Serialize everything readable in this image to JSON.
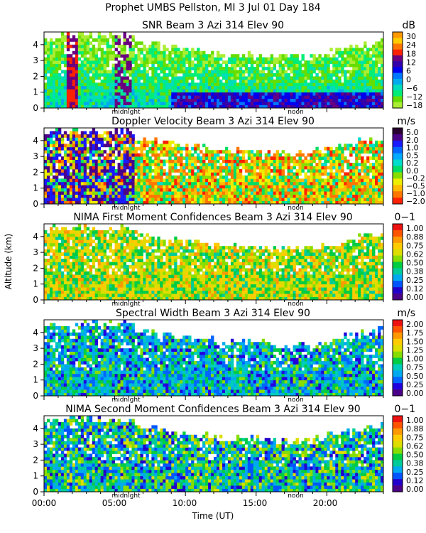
{
  "chart_data": {
    "type": "heatmap",
    "title": "Prophet  UMBS Pellston, MI   3 Jul 01 Day 184",
    "xlabel": "Time (UT)",
    "ylabel": "Altitude (km)",
    "x_tick_labels": [
      "00:00",
      "05:00",
      "10:00",
      "15:00",
      "20:00"
    ],
    "x_ticks_hours": [
      0,
      5,
      10,
      15,
      20
    ],
    "xlim_hours": [
      0,
      24
    ],
    "ylim_km": [
      0,
      4.8
    ],
    "y_ticks": [
      0,
      1,
      2,
      3,
      4
    ],
    "y_tick_labels": [
      "0",
      "1",
      "2",
      "3",
      "4"
    ],
    "markers": [
      {
        "label": "midnight",
        "hour": 5.8
      },
      {
        "label": "noon",
        "hour": 17.8
      }
    ],
    "panels": [
      {
        "title": "SNR Beam 3 Azi 314 Elev 90",
        "unit": "dB",
        "colorbar_labels": [
          "30",
          "24",
          "18",
          "12",
          "6",
          "0",
          "−6",
          "−12",
          "−18"
        ],
        "colors": [
          "#ff9900",
          "#ffcc00",
          "#ff7700",
          "#ff2200",
          "#6a0080",
          "#3300aa",
          "#0000ee",
          "#0077ff",
          "#00aaee",
          "#00ddbb",
          "#00ee77",
          "#66dd00",
          "#aaee33"
        ]
      },
      {
        "title": "Doppler Velocity Beam 3 Azi 314 Elev 90",
        "unit": "m/s",
        "colorbar_labels": [
          "5.0",
          "2.0",
          "1.0",
          "0.5",
          "0.2",
          "0.0",
          "−0.2",
          "−0.5",
          "−1.0",
          "−2.0"
        ],
        "colors": [
          "#2a0030",
          "#4b0088",
          "#1a1aff",
          "#0066ff",
          "#00aaff",
          "#00ddcc",
          "#00dd66",
          "#88dd00",
          "#eeee00",
          "#ffbb00",
          "#ff7700",
          "#ff2200"
        ]
      },
      {
        "title": "NIMA First Moment Confidences Beam 3 Azi 314 Elev 90",
        "unit": "0−1",
        "colorbar_labels": [
          "1.00",
          "0.88",
          "0.75",
          "0.62",
          "0.50",
          "0.38",
          "0.25",
          "0.12",
          "0.00"
        ],
        "colors": [
          "#ee1111",
          "#ff5500",
          "#ff9900",
          "#ffcc00",
          "#dddd00",
          "#88dd00",
          "#00cc44",
          "#00cc99",
          "#00aaee",
          "#0055ff",
          "#2200cc",
          "#4b0088"
        ]
      },
      {
        "title": "Spectral Width Beam 3 Azi 314 Elev 90",
        "unit": "m/s",
        "colorbar_labels": [
          "2.00",
          "1.75",
          "1.50",
          "1.25",
          "1.00",
          "0.75",
          "0.50",
          "0.25",
          "0.00"
        ],
        "colors": [
          "#ee1111",
          "#ff5500",
          "#ff9900",
          "#ffcc00",
          "#dddd00",
          "#88dd00",
          "#00cc44",
          "#00ccbb",
          "#00aaee",
          "#0066ff",
          "#2200dd",
          "#4b0088"
        ]
      },
      {
        "title": "NIMA Second Moment Confidences Beam 3 Azi 314 Elev 90",
        "unit": "0−1",
        "colorbar_labels": [
          "1.00",
          "0.88",
          "0.75",
          "0.62",
          "0.50",
          "0.38",
          "0.25",
          "0.12",
          "0.00"
        ],
        "colors": [
          "#ee1111",
          "#ff5500",
          "#ff9900",
          "#ffcc00",
          "#dddd00",
          "#88dd00",
          "#00cc44",
          "#00cc99",
          "#00aaee",
          "#0055ff",
          "#2200cc",
          "#4b0088"
        ]
      }
    ]
  }
}
